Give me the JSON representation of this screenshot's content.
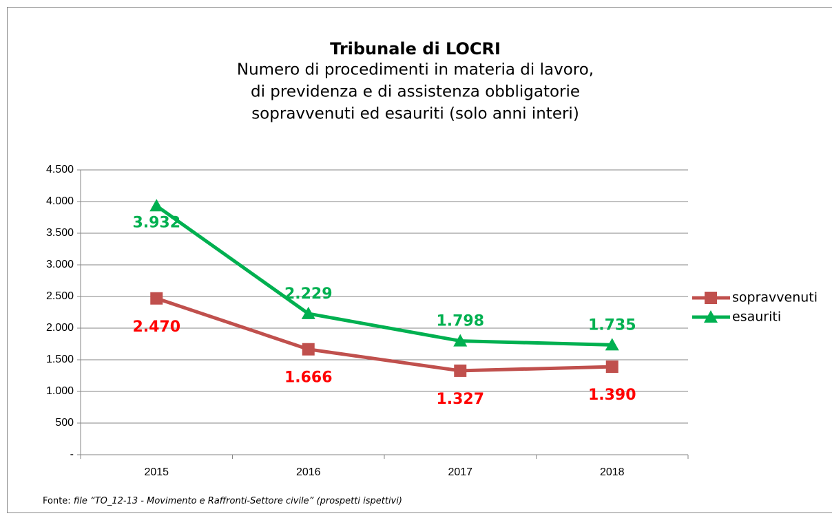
{
  "chart_data": {
    "type": "line",
    "title": "Tribunale di LOCRI",
    "subtitle": [
      "Numero di procedimenti in materia di lavoro,",
      "di previdenza e di assistenza obbligatorie",
      "sopravvenuti ed esauriti (solo anni interi)"
    ],
    "categories": [
      "2015",
      "2016",
      "2017",
      "2018"
    ],
    "series": [
      {
        "name": "sopravvenuti",
        "color": "#c0504d",
        "label_color": "#ff0000",
        "marker": "square",
        "values": [
          2470,
          1666,
          1327,
          1390
        ],
        "value_labels": [
          "2.470",
          "1.666",
          "1.327",
          "1.390"
        ]
      },
      {
        "name": "esauriti",
        "color": "#00b050",
        "label_color": "#00b050",
        "marker": "triangle",
        "values": [
          3932,
          2229,
          1798,
          1735
        ],
        "value_labels": [
          "3.932",
          "2.229",
          "1.798",
          "1.735"
        ]
      }
    ],
    "ylim": [
      0,
      4500
    ],
    "yticks": [
      {
        "value": 0,
        "label": "-"
      },
      {
        "value": 500,
        "label": "500"
      },
      {
        "value": 1000,
        "label": "1.000"
      },
      {
        "value": 1500,
        "label": "1.500"
      },
      {
        "value": 2000,
        "label": "2.000"
      },
      {
        "value": 2500,
        "label": "2.500"
      },
      {
        "value": 3000,
        "label": "3.000"
      },
      {
        "value": 3500,
        "label": "3.500"
      },
      {
        "value": 4000,
        "label": "4.000"
      },
      {
        "value": 4500,
        "label": "4.500"
      }
    ],
    "grid": true,
    "legend": "right",
    "source": {
      "prefix": "Fonte: ",
      "text": "file “TO_12-13 - Movimento e Raffronti-Settore civile” (prospetti ispettivi)"
    }
  }
}
